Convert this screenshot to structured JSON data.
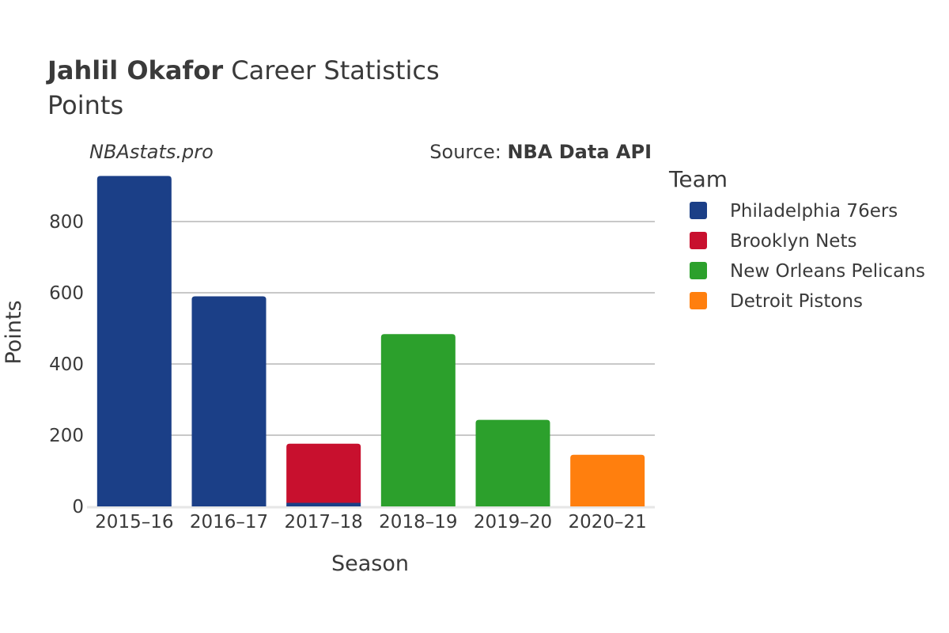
{
  "header": {
    "player_name": "Jahlil Okafor",
    "title_rest": " Career Statistics",
    "subtitle": "Points",
    "watermark": "NBAstats.pro",
    "source_prefix": "Source: ",
    "source_name": "NBA Data API"
  },
  "legend": {
    "title": "Team",
    "position": "right"
  },
  "chart_data": {
    "type": "bar",
    "stacked": true,
    "categories": [
      "2015–16",
      "2016–17",
      "2017–18",
      "2018–19",
      "2019–20",
      "2020–21"
    ],
    "series": [
      {
        "name": "Philadelphia 76ers",
        "color": "#1b3f87",
        "values": [
          928,
          590,
          10,
          0,
          0,
          0
        ]
      },
      {
        "name": "Brooklyn Nets",
        "color": "#c8102e",
        "values": [
          0,
          0,
          166,
          0,
          0,
          0
        ]
      },
      {
        "name": "New Orleans Pelicans",
        "color": "#2ca02c",
        "values": [
          0,
          0,
          0,
          484,
          243,
          0
        ]
      },
      {
        "name": "Detroit Pistons",
        "color": "#ff7f0e",
        "values": [
          0,
          0,
          0,
          0,
          0,
          145
        ]
      }
    ],
    "title": "Jahlil Okafor Career Statistics",
    "subtitle": "Points",
    "xlabel": "Season",
    "ylabel": "Points",
    "yticks": [
      0,
      200,
      400,
      600,
      800
    ],
    "ylim": [
      0,
      950
    ],
    "grid": true
  }
}
